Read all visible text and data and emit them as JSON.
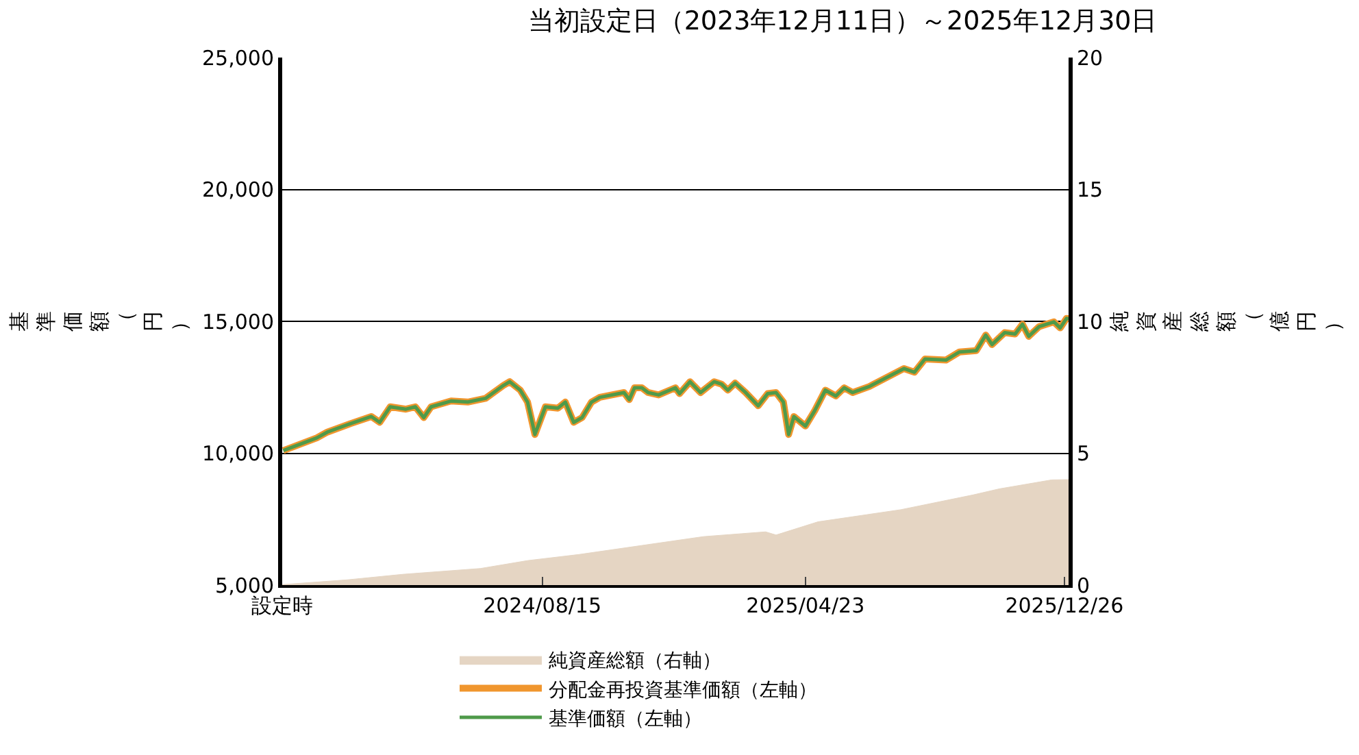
{
  "chart_data": {
    "type": "line",
    "title": "当初設定日（2023年12月11日）～2025年12月30日",
    "ylabel": "基準価額（円）",
    "y2label": "純資産総額（億円）",
    "xlim": [
      "2023-12-11",
      "2025-12-30"
    ],
    "xticks": [
      {
        "value": "2023-12-11",
        "label": "設定時"
      },
      {
        "value": "2024-08-15",
        "label": "2024/08/15"
      },
      {
        "value": "2025-04-23",
        "label": "2025/04/23"
      },
      {
        "value": "2025-12-26",
        "label": "2025/12/26"
      }
    ],
    "ylim": [
      5000,
      25000
    ],
    "yticks": [
      {
        "value": 5000,
        "label": "5,000"
      },
      {
        "value": 10000,
        "label": "10,000"
      },
      {
        "value": 15000,
        "label": "15,000"
      },
      {
        "value": 20000,
        "label": "20,000"
      },
      {
        "value": 25000,
        "label": "25,000"
      }
    ],
    "y2lim": [
      0,
      20
    ],
    "y2ticks": [
      0,
      5,
      10,
      15,
      20
    ],
    "grid": "y",
    "legend": "bottom",
    "series": [
      {
        "name": "純資産総額（右軸）",
        "type": "area",
        "axis": "y2",
        "color": "#e5d5c3",
        "x": [
          "2023-12-11",
          "2024-02-11",
          "2024-04-04",
          "2024-06-17",
          "2024-08-01",
          "2024-09-19",
          "2025-01-16",
          "2025-03-16",
          "2025-03-26",
          "2025-05-05",
          "2025-07-23",
          "2025-09-30",
          "2025-10-25",
          "2025-12-14",
          "2025-12-30"
        ],
        "values": [
          0.02,
          0.2,
          0.41,
          0.63,
          0.93,
          1.16,
          1.84,
          2.02,
          1.9,
          2.4,
          2.86,
          3.42,
          3.65,
          3.99,
          4.0
        ]
      },
      {
        "name": "分配金再投資基準価額（左軸）",
        "color": "#f0962e",
        "x": [
          "2023-12-12",
          "2024-01-13",
          "2024-01-23",
          "2024-02-14",
          "2024-03-05",
          "2024-03-13",
          "2024-03-23",
          "2024-04-07",
          "2024-04-16",
          "2024-04-24",
          "2024-05-01",
          "2024-05-20",
          "2024-06-05",
          "2024-06-22",
          "2024-07-09",
          "2024-07-15",
          "2024-07-25",
          "2024-08-01",
          "2024-08-08",
          "2024-08-18",
          "2024-08-30",
          "2024-09-06",
          "2024-09-14",
          "2024-09-22",
          "2024-10-01",
          "2024-10-09",
          "2024-11-01",
          "2024-11-06",
          "2024-11-11",
          "2024-11-18",
          "2024-11-24",
          "2024-12-04",
          "2024-12-20",
          "2024-12-24",
          "2025-01-03",
          "2025-01-13",
          "2025-01-26",
          "2025-02-02",
          "2025-02-08",
          "2025-02-15",
          "2025-02-25",
          "2025-03-09",
          "2025-03-18",
          "2025-03-26",
          "2025-04-02",
          "2025-04-07",
          "2025-04-12",
          "2025-04-23",
          "2025-05-02",
          "2025-05-12",
          "2025-05-22",
          "2025-05-30",
          "2025-06-07",
          "2025-06-23",
          "2025-07-26",
          "2025-08-05",
          "2025-08-15",
          "2025-09-04",
          "2025-09-17",
          "2025-10-03",
          "2025-10-12",
          "2025-10-18",
          "2025-10-30",
          "2025-11-09",
          "2025-11-16",
          "2025-11-22",
          "2025-12-02",
          "2025-12-16",
          "2025-12-22",
          "2025-12-28",
          "2025-12-30"
        ],
        "values": [
          10100,
          10580,
          10800,
          11120,
          11390,
          11170,
          11760,
          11670,
          11760,
          11350,
          11760,
          11980,
          11940,
          12080,
          12570,
          12710,
          12390,
          11940,
          10710,
          11760,
          11710,
          11940,
          11170,
          11350,
          11940,
          12120,
          12300,
          12030,
          12480,
          12480,
          12300,
          12210,
          12480,
          12260,
          12710,
          12300,
          12710,
          12620,
          12390,
          12660,
          12300,
          11800,
          12260,
          12300,
          11940,
          10710,
          11390,
          11030,
          11620,
          12390,
          12170,
          12480,
          12300,
          12530,
          13210,
          13070,
          13570,
          13530,
          13840,
          13890,
          14480,
          14120,
          14570,
          14520,
          14890,
          14430,
          14800,
          14980,
          14750,
          15110,
          15100
        ]
      },
      {
        "name": "基準価額（左軸）",
        "color": "#4f9a4a",
        "x": [
          "2023-12-12",
          "2024-01-13",
          "2024-01-23",
          "2024-02-14",
          "2024-03-05",
          "2024-03-13",
          "2024-03-23",
          "2024-04-07",
          "2024-04-16",
          "2024-04-24",
          "2024-05-01",
          "2024-05-20",
          "2024-06-05",
          "2024-06-22",
          "2024-07-09",
          "2024-07-15",
          "2024-07-25",
          "2024-08-01",
          "2024-08-08",
          "2024-08-18",
          "2024-08-30",
          "2024-09-06",
          "2024-09-14",
          "2024-09-22",
          "2024-10-01",
          "2024-10-09",
          "2024-11-01",
          "2024-11-06",
          "2024-11-11",
          "2024-11-18",
          "2024-11-24",
          "2024-12-04",
          "2024-12-20",
          "2024-12-24",
          "2025-01-03",
          "2025-01-13",
          "2025-01-26",
          "2025-02-02",
          "2025-02-08",
          "2025-02-15",
          "2025-02-25",
          "2025-03-09",
          "2025-03-18",
          "2025-03-26",
          "2025-04-02",
          "2025-04-07",
          "2025-04-12",
          "2025-04-23",
          "2025-05-02",
          "2025-05-12",
          "2025-05-22",
          "2025-05-30",
          "2025-06-07",
          "2025-06-23",
          "2025-07-26",
          "2025-08-05",
          "2025-08-15",
          "2025-09-04",
          "2025-09-17",
          "2025-10-03",
          "2025-10-12",
          "2025-10-18",
          "2025-10-30",
          "2025-11-09",
          "2025-11-16",
          "2025-11-22",
          "2025-12-02",
          "2025-12-16",
          "2025-12-22",
          "2025-12-28",
          "2025-12-30"
        ],
        "values": [
          10100,
          10580,
          10800,
          11120,
          11390,
          11170,
          11760,
          11670,
          11760,
          11350,
          11760,
          11980,
          11940,
          12080,
          12570,
          12710,
          12390,
          11940,
          10710,
          11760,
          11710,
          11940,
          11170,
          11350,
          11940,
          12120,
          12300,
          12030,
          12480,
          12480,
          12300,
          12210,
          12480,
          12260,
          12710,
          12300,
          12710,
          12620,
          12390,
          12660,
          12300,
          11800,
          12260,
          12300,
          11940,
          10710,
          11390,
          11030,
          11620,
          12390,
          12170,
          12480,
          12300,
          12530,
          13210,
          13070,
          13570,
          13530,
          13840,
          13890,
          14480,
          14120,
          14570,
          14520,
          14890,
          14430,
          14800,
          14980,
          14750,
          15110,
          15100
        ]
      }
    ]
  }
}
